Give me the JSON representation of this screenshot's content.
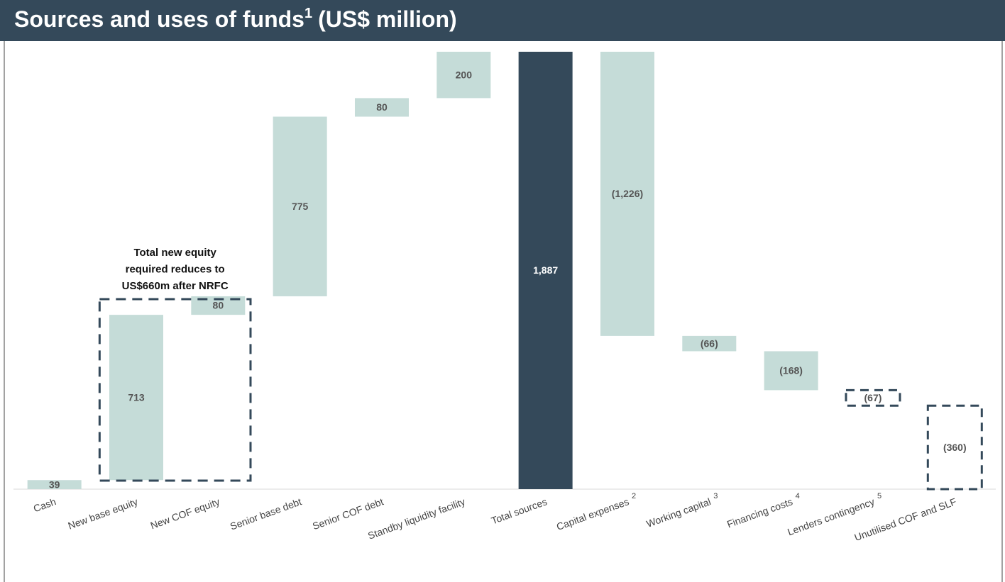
{
  "chart_data": {
    "type": "waterfall",
    "title": "Sources and uses of funds",
    "title_note": "1",
    "title_unit": "(US$ million)",
    "categories": [
      "Cash",
      "New base equity",
      "New COF equity",
      "Senior base debt",
      "Senior COF debt",
      "Standby liquidity facility",
      "Total sources",
      "Capital expenses",
      "Working capital",
      "Financing costs",
      "Lenders contingency",
      "Unutilised COF and SLF"
    ],
    "category_notes": [
      null,
      null,
      null,
      null,
      null,
      null,
      null,
      "2",
      "3",
      "4",
      "5",
      null
    ],
    "values": [
      39,
      713,
      80,
      775,
      80,
      200,
      1887,
      -1226,
      -66,
      -168,
      -67,
      -360
    ],
    "value_labels": [
      "39",
      "713",
      "80",
      "775",
      "80",
      "200",
      "1,887",
      "(1,226)",
      "(66)",
      "(168)",
      "(67)",
      "(360)"
    ],
    "is_total": [
      false,
      false,
      false,
      false,
      false,
      false,
      true,
      false,
      false,
      false,
      false,
      false
    ],
    "dashed": [
      false,
      false,
      false,
      false,
      false,
      false,
      false,
      false,
      false,
      false,
      true,
      true
    ],
    "color": "#c5dcd8",
    "total_color": "#34495a",
    "ylim": [
      0,
      1887
    ],
    "annotation": {
      "lines": [
        "Total new equity",
        "required reduces to",
        "US$660m after NRFC"
      ],
      "categories": [
        1,
        2
      ]
    }
  }
}
